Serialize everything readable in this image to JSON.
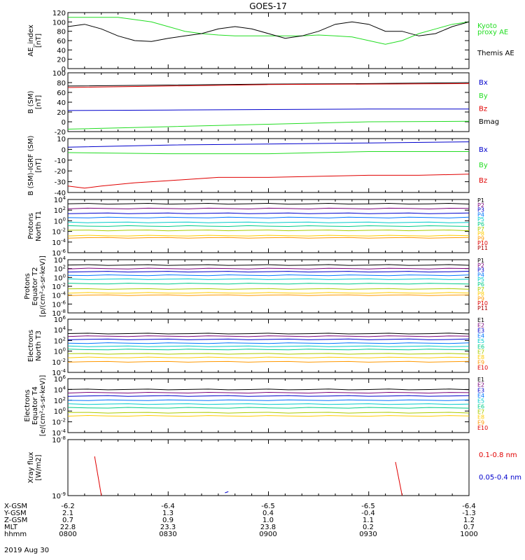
{
  "title": "GOES-17",
  "date_label": "2019 Aug 30",
  "footer": {
    "rows": [
      {
        "label": "X-GSM",
        "values": [
          "-6.2",
          "-6.4",
          "-6.5",
          "-6.5",
          "-6.4"
        ]
      },
      {
        "label": "Y-GSM",
        "values": [
          "2.1",
          "1.3",
          "0.4",
          "-0.4",
          "-1.3"
        ]
      },
      {
        "label": "Z-GSM",
        "values": [
          "0.7",
          "0.9",
          "1.0",
          "1.1",
          "1.2"
        ]
      },
      {
        "label": "MLT",
        "values": [
          "22.8",
          "23.3",
          "23.8",
          "0.2",
          "0.7"
        ]
      },
      {
        "label": "hhmm",
        "values": [
          "0800",
          "0830",
          "0900",
          "0930",
          "1000"
        ]
      }
    ]
  },
  "colors": {
    "black": "#000000",
    "red": "#e00000",
    "green": "#22dd22",
    "blue": "#0000cc",
    "P": [
      "#000000",
      "#7a007a",
      "#0000cc",
      "#0077ff",
      "#00cccc",
      "#00cc88",
      "#aacc00",
      "#ffcc00",
      "#ff9900",
      "#dd0000",
      "#aa0000"
    ],
    "E": [
      "#000000",
      "#7a007a",
      "#0000cc",
      "#0077ff",
      "#00cccc",
      "#00cc88",
      "#aacc00",
      "#ffcc00",
      "#ff9900",
      "#dd0000"
    ]
  },
  "chart_data": [
    {
      "type": "line",
      "ylabel": "AE_index\n[nT]",
      "ylim": [
        0,
        120
      ],
      "yticks": [
        "0",
        "20",
        "40",
        "60",
        "80",
        "100",
        "120"
      ],
      "legend": [
        {
          "text": "Kyoto",
          "color": "green"
        },
        {
          "text": "proxy AE",
          "color": "green"
        },
        {
          "text": "Themis AE",
          "color": "black"
        }
      ],
      "series": [
        {
          "color": "green",
          "x": [
            0,
            5,
            10,
            15,
            20,
            25,
            30,
            35,
            40,
            45,
            50,
            55,
            60,
            65,
            70,
            75,
            80,
            85,
            90,
            95,
            100,
            105,
            110,
            115,
            120
          ],
          "y": [
            110,
            110,
            110,
            110,
            105,
            100,
            90,
            80,
            75,
            72,
            70,
            70,
            70,
            70,
            70,
            72,
            70,
            68,
            60,
            52,
            60,
            75,
            85,
            95,
            100
          ]
        },
        {
          "color": "black",
          "x": [
            0,
            5,
            10,
            15,
            20,
            25,
            30,
            35,
            40,
            45,
            50,
            55,
            60,
            65,
            70,
            75,
            80,
            85,
            90,
            95,
            100,
            105,
            110,
            115,
            120
          ],
          "y": [
            90,
            95,
            85,
            70,
            60,
            58,
            65,
            70,
            75,
            85,
            90,
            85,
            75,
            65,
            70,
            80,
            95,
            100,
            95,
            80,
            80,
            70,
            75,
            90,
            100
          ]
        }
      ]
    },
    {
      "type": "line",
      "ylabel": "B (SM)\n[nT]",
      "ylim": [
        -20,
        100
      ],
      "yticks": [
        "-20",
        "0",
        "20",
        "40",
        "60",
        "80",
        "100"
      ],
      "legend": [
        {
          "text": "Bx",
          "color": "blue"
        },
        {
          "text": "By",
          "color": "green"
        },
        {
          "text": "Bz",
          "color": "red"
        },
        {
          "text": "Bmag",
          "color": "black"
        }
      ],
      "series": [
        {
          "color": "black",
          "x": [
            0,
            30,
            60,
            90,
            120
          ],
          "y": [
            73,
            75,
            77,
            78,
            80
          ]
        },
        {
          "color": "red",
          "x": [
            0,
            30,
            60,
            90,
            120
          ],
          "y": [
            70,
            73,
            76,
            77,
            78
          ]
        },
        {
          "color": "blue",
          "x": [
            0,
            30,
            60,
            90,
            120
          ],
          "y": [
            23,
            24,
            25,
            26,
            26
          ]
        },
        {
          "color": "green",
          "x": [
            0,
            30,
            60,
            90,
            120
          ],
          "y": [
            -15,
            -10,
            -5,
            0,
            1
          ]
        }
      ]
    },
    {
      "type": "line",
      "ylabel": "B (SM)-IGRF (SM)\n[nT]",
      "ylim": [
        -40,
        10
      ],
      "yticks": [
        "-40",
        "-30",
        "-20",
        "-10",
        "0",
        "10"
      ],
      "legend": [
        {
          "text": "Bx",
          "color": "blue"
        },
        {
          "text": "By",
          "color": "green"
        },
        {
          "text": "Bz",
          "color": "red"
        }
      ],
      "series": [
        {
          "color": "blue",
          "x": [
            0,
            30,
            60,
            90,
            120
          ],
          "y": [
            2,
            4,
            5,
            6,
            7
          ]
        },
        {
          "color": "green",
          "x": [
            0,
            30,
            60,
            90,
            120
          ],
          "y": [
            -3,
            -4,
            -4,
            -2,
            -2
          ]
        },
        {
          "color": "red",
          "x": [
            0,
            5,
            10,
            20,
            30,
            45,
            60,
            75,
            90,
            105,
            120
          ],
          "y": [
            -34,
            -36,
            -34,
            -31,
            -29,
            -26,
            -26,
            -25,
            -24,
            -24,
            -23
          ]
        }
      ]
    },
    {
      "type": "line",
      "ylabel": "Protons\nNorth T1",
      "ylim": [
        -6,
        4
      ],
      "yticks": [
        "10^-6",
        "10^-4",
        "10^-2",
        "10^0",
        "10^2",
        "10^4"
      ],
      "legend": [
        {
          "text": "P1"
        },
        {
          "text": "P2"
        },
        {
          "text": "P3"
        },
        {
          "text": "P4"
        },
        {
          "text": "P5"
        },
        {
          "text": "P6"
        },
        {
          "text": "P7"
        },
        {
          "text": "P8"
        },
        {
          "text": "P9"
        },
        {
          "text": "P10"
        },
        {
          "text": "P11"
        }
      ],
      "series": [
        {
          "name": "P1",
          "y": 3.2
        },
        {
          "name": "P2",
          "y": 2.3
        },
        {
          "name": "P3",
          "y": 1.4
        },
        {
          "name": "P4",
          "y": 0.6
        },
        {
          "name": "P5",
          "y": -0.3
        },
        {
          "name": "P6",
          "y": -1.0
        },
        {
          "name": "P7",
          "y": -1.8
        },
        {
          "name": "P8",
          "y": -2.8
        },
        {
          "name": "P9",
          "y": -3.2
        }
      ]
    },
    {
      "type": "line",
      "ylabel": "Protons\nEquator T2\n[p/(cm²-s-sr-keV)]",
      "ylim": [
        -8,
        4
      ],
      "yticks": [
        "10^-8",
        "10^-6",
        "10^-4",
        "10^-2",
        "10^0",
        "10^2",
        "10^4"
      ],
      "legend": [
        {
          "text": "P1"
        },
        {
          "text": "P2"
        },
        {
          "text": "P3"
        },
        {
          "text": "P4"
        },
        {
          "text": "P5"
        },
        {
          "text": "P6"
        },
        {
          "text": "P7"
        },
        {
          "text": "P8"
        },
        {
          "text": "P9"
        },
        {
          "text": "P10"
        },
        {
          "text": "P11"
        }
      ],
      "series": [
        {
          "name": "P1",
          "y": 2.8
        },
        {
          "name": "P2",
          "y": 2.0
        },
        {
          "name": "P3",
          "y": 1.3
        },
        {
          "name": "P4",
          "y": 0.5
        },
        {
          "name": "P5",
          "y": -0.4
        },
        {
          "name": "P6",
          "y": -1.4
        },
        {
          "name": "P7",
          "y": -2.6
        },
        {
          "name": "P8",
          "y": -3.5
        },
        {
          "name": "P9",
          "y": -4.0
        }
      ]
    },
    {
      "type": "line",
      "ylabel": "Electrons\nNorth T3",
      "ylim": [
        -4,
        6
      ],
      "yticks": [
        "10^-4",
        "10^-2",
        "10^0",
        "10^2",
        "10^4",
        "10^6"
      ],
      "legend": [
        {
          "text": "E1"
        },
        {
          "text": "E2"
        },
        {
          "text": "E3"
        },
        {
          "text": "E4"
        },
        {
          "text": "E5"
        },
        {
          "text": "E6"
        },
        {
          "text": "E7"
        },
        {
          "text": "E8"
        },
        {
          "text": "E9"
        },
        {
          "text": "E10"
        }
      ],
      "series": [
        {
          "name": "E1",
          "y": 3.3
        },
        {
          "name": "E2",
          "y": 2.8
        },
        {
          "name": "E3",
          "y": 2.2
        },
        {
          "name": "E4",
          "y": 1.5
        },
        {
          "name": "E5",
          "y": 0.9
        },
        {
          "name": "E6",
          "y": 0.3
        },
        {
          "name": "E7",
          "y": -0.5
        },
        {
          "name": "E8",
          "y": -1.2
        },
        {
          "name": "E9",
          "y": -2.0
        }
      ]
    },
    {
      "type": "line",
      "ylabel": "Electrons\nEquator T4\n[e/(cm²-s-sr-keV)]",
      "ylim": [
        -4,
        6
      ],
      "yticks": [
        "10^-4",
        "10^-2",
        "10^0",
        "10^2",
        "10^4",
        "10^6"
      ],
      "legend": [
        {
          "text": "E1"
        },
        {
          "text": "E2"
        },
        {
          "text": "E3"
        },
        {
          "text": "E4"
        },
        {
          "text": "E5"
        },
        {
          "text": "E6"
        },
        {
          "text": "E7"
        },
        {
          "text": "E8"
        },
        {
          "text": "E9"
        },
        {
          "text": "E10"
        }
      ],
      "series": [
        {
          "name": "E1",
          "y": 4.0
        },
        {
          "name": "E2",
          "y": 3.4
        },
        {
          "name": "E3",
          "y": 2.8
        },
        {
          "name": "E4",
          "y": 2.0
        },
        {
          "name": "E5",
          "y": 1.3
        },
        {
          "name": "E6",
          "y": 0.6
        },
        {
          "name": "E7",
          "y": -0.3
        },
        {
          "name": "E8",
          "y": -0.9
        }
      ]
    },
    {
      "type": "line",
      "ylabel": "Xray flux\n[W/m2]",
      "ylim": [
        -9,
        -8
      ],
      "yticks": [
        "10^-9",
        "10^-8"
      ],
      "legend": [
        {
          "text": "0.1-0.8 nm",
          "color": "red"
        },
        {
          "text": "0.05-0.4 nm",
          "color": "blue"
        }
      ],
      "series": [
        {
          "color": "red",
          "x": [
            8,
            10
          ],
          "y": [
            -8.3,
            -9.0
          ]
        },
        {
          "color": "red",
          "x": [
            98,
            100
          ],
          "y": [
            -8.4,
            -9.0
          ]
        },
        {
          "color": "blue",
          "x": [
            47,
            48
          ],
          "y": [
            -8.95,
            -8.93
          ]
        }
      ]
    }
  ]
}
